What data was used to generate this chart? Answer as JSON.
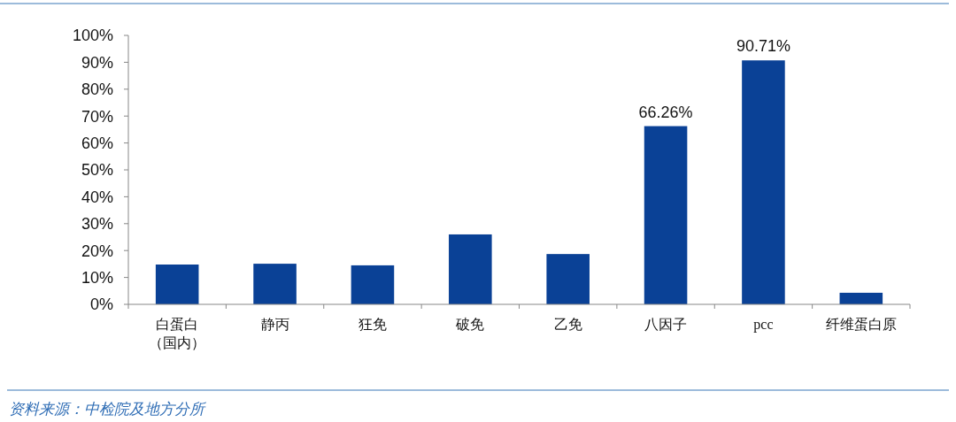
{
  "chart_data": {
    "type": "bar",
    "categories": [
      "白蛋白（国内）",
      "静丙",
      "狂免",
      "破免",
      "乙免",
      "八因子",
      "pcc",
      "纤维蛋白原"
    ],
    "values": [
      14.8,
      15.1,
      14.5,
      26,
      18.7,
      66.26,
      90.71,
      4.3
    ],
    "value_labels": [
      null,
      null,
      null,
      null,
      null,
      "66.26%",
      "90.71%",
      null
    ],
    "color": "#0a4196",
    "ylim": [
      0,
      100
    ],
    "yticks": [
      {
        "value": 0,
        "label": "0%"
      },
      {
        "value": 10,
        "label": "10%"
      },
      {
        "value": 20,
        "label": "20%"
      },
      {
        "value": 30,
        "label": "30%"
      },
      {
        "value": 40,
        "label": "40%"
      },
      {
        "value": 50,
        "label": "50%"
      },
      {
        "value": 60,
        "label": "60%"
      },
      {
        "value": 70,
        "label": "70%"
      },
      {
        "value": 80,
        "label": "80%"
      },
      {
        "value": 90,
        "label": "90%"
      },
      {
        "value": 100,
        "label": "100%"
      }
    ],
    "annotations": [
      "资料来源：中检院及地方分所"
    ]
  }
}
